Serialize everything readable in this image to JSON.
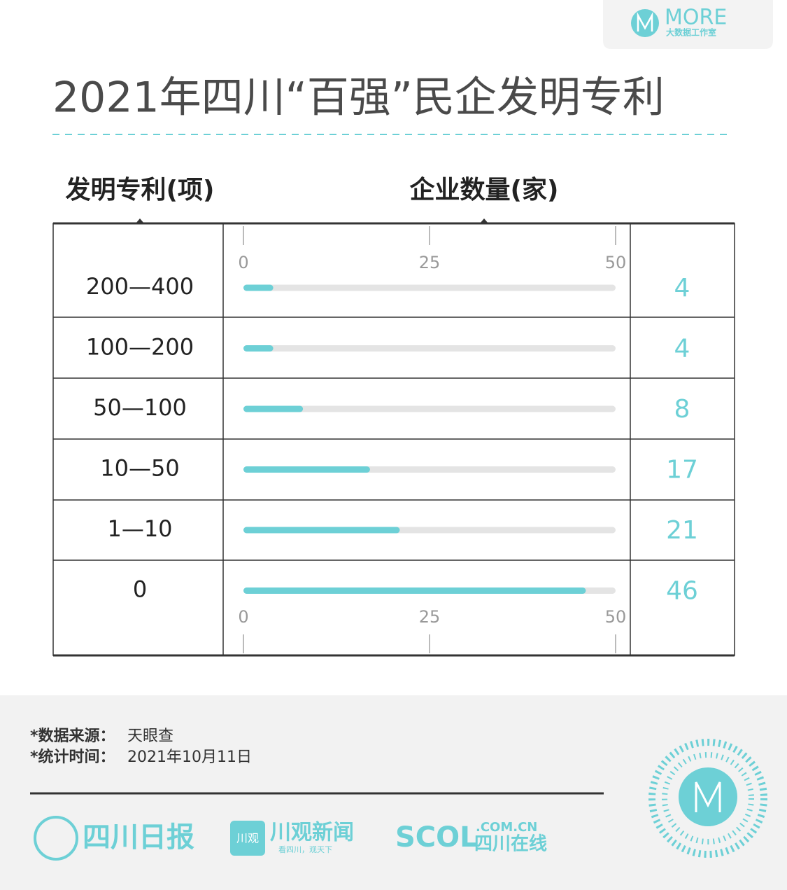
{
  "chart_data": {
    "type": "bar",
    "orientation": "horizontal",
    "title": "2021年四川“百强”民企发明专利",
    "category_header": "发明专利(项)",
    "value_header": "企业数量(家)",
    "categories": [
      "200—400",
      "100—200",
      "50—100",
      "10—50",
      "1—10",
      "0"
    ],
    "values": [
      4,
      4,
      8,
      17,
      21,
      46
    ],
    "color": "#6dd0d6",
    "track_color": "#e4e4e4",
    "xlim": [
      0,
      50
    ],
    "xticks": [
      0,
      25,
      50
    ]
  },
  "notes": [
    {
      "label": "*数据来源：",
      "text": "天眼查"
    },
    {
      "label": "*统计时间：",
      "text": "2021年10月11日"
    }
  ],
  "branding": {
    "studio": "MORE",
    "studio_sub": "大数据工作室",
    "logos": [
      "四川日报",
      "川观",
      "川观新闻",
      "看四川，观天下",
      "SCOL",
      ".COM.CN",
      "四川在线"
    ]
  }
}
